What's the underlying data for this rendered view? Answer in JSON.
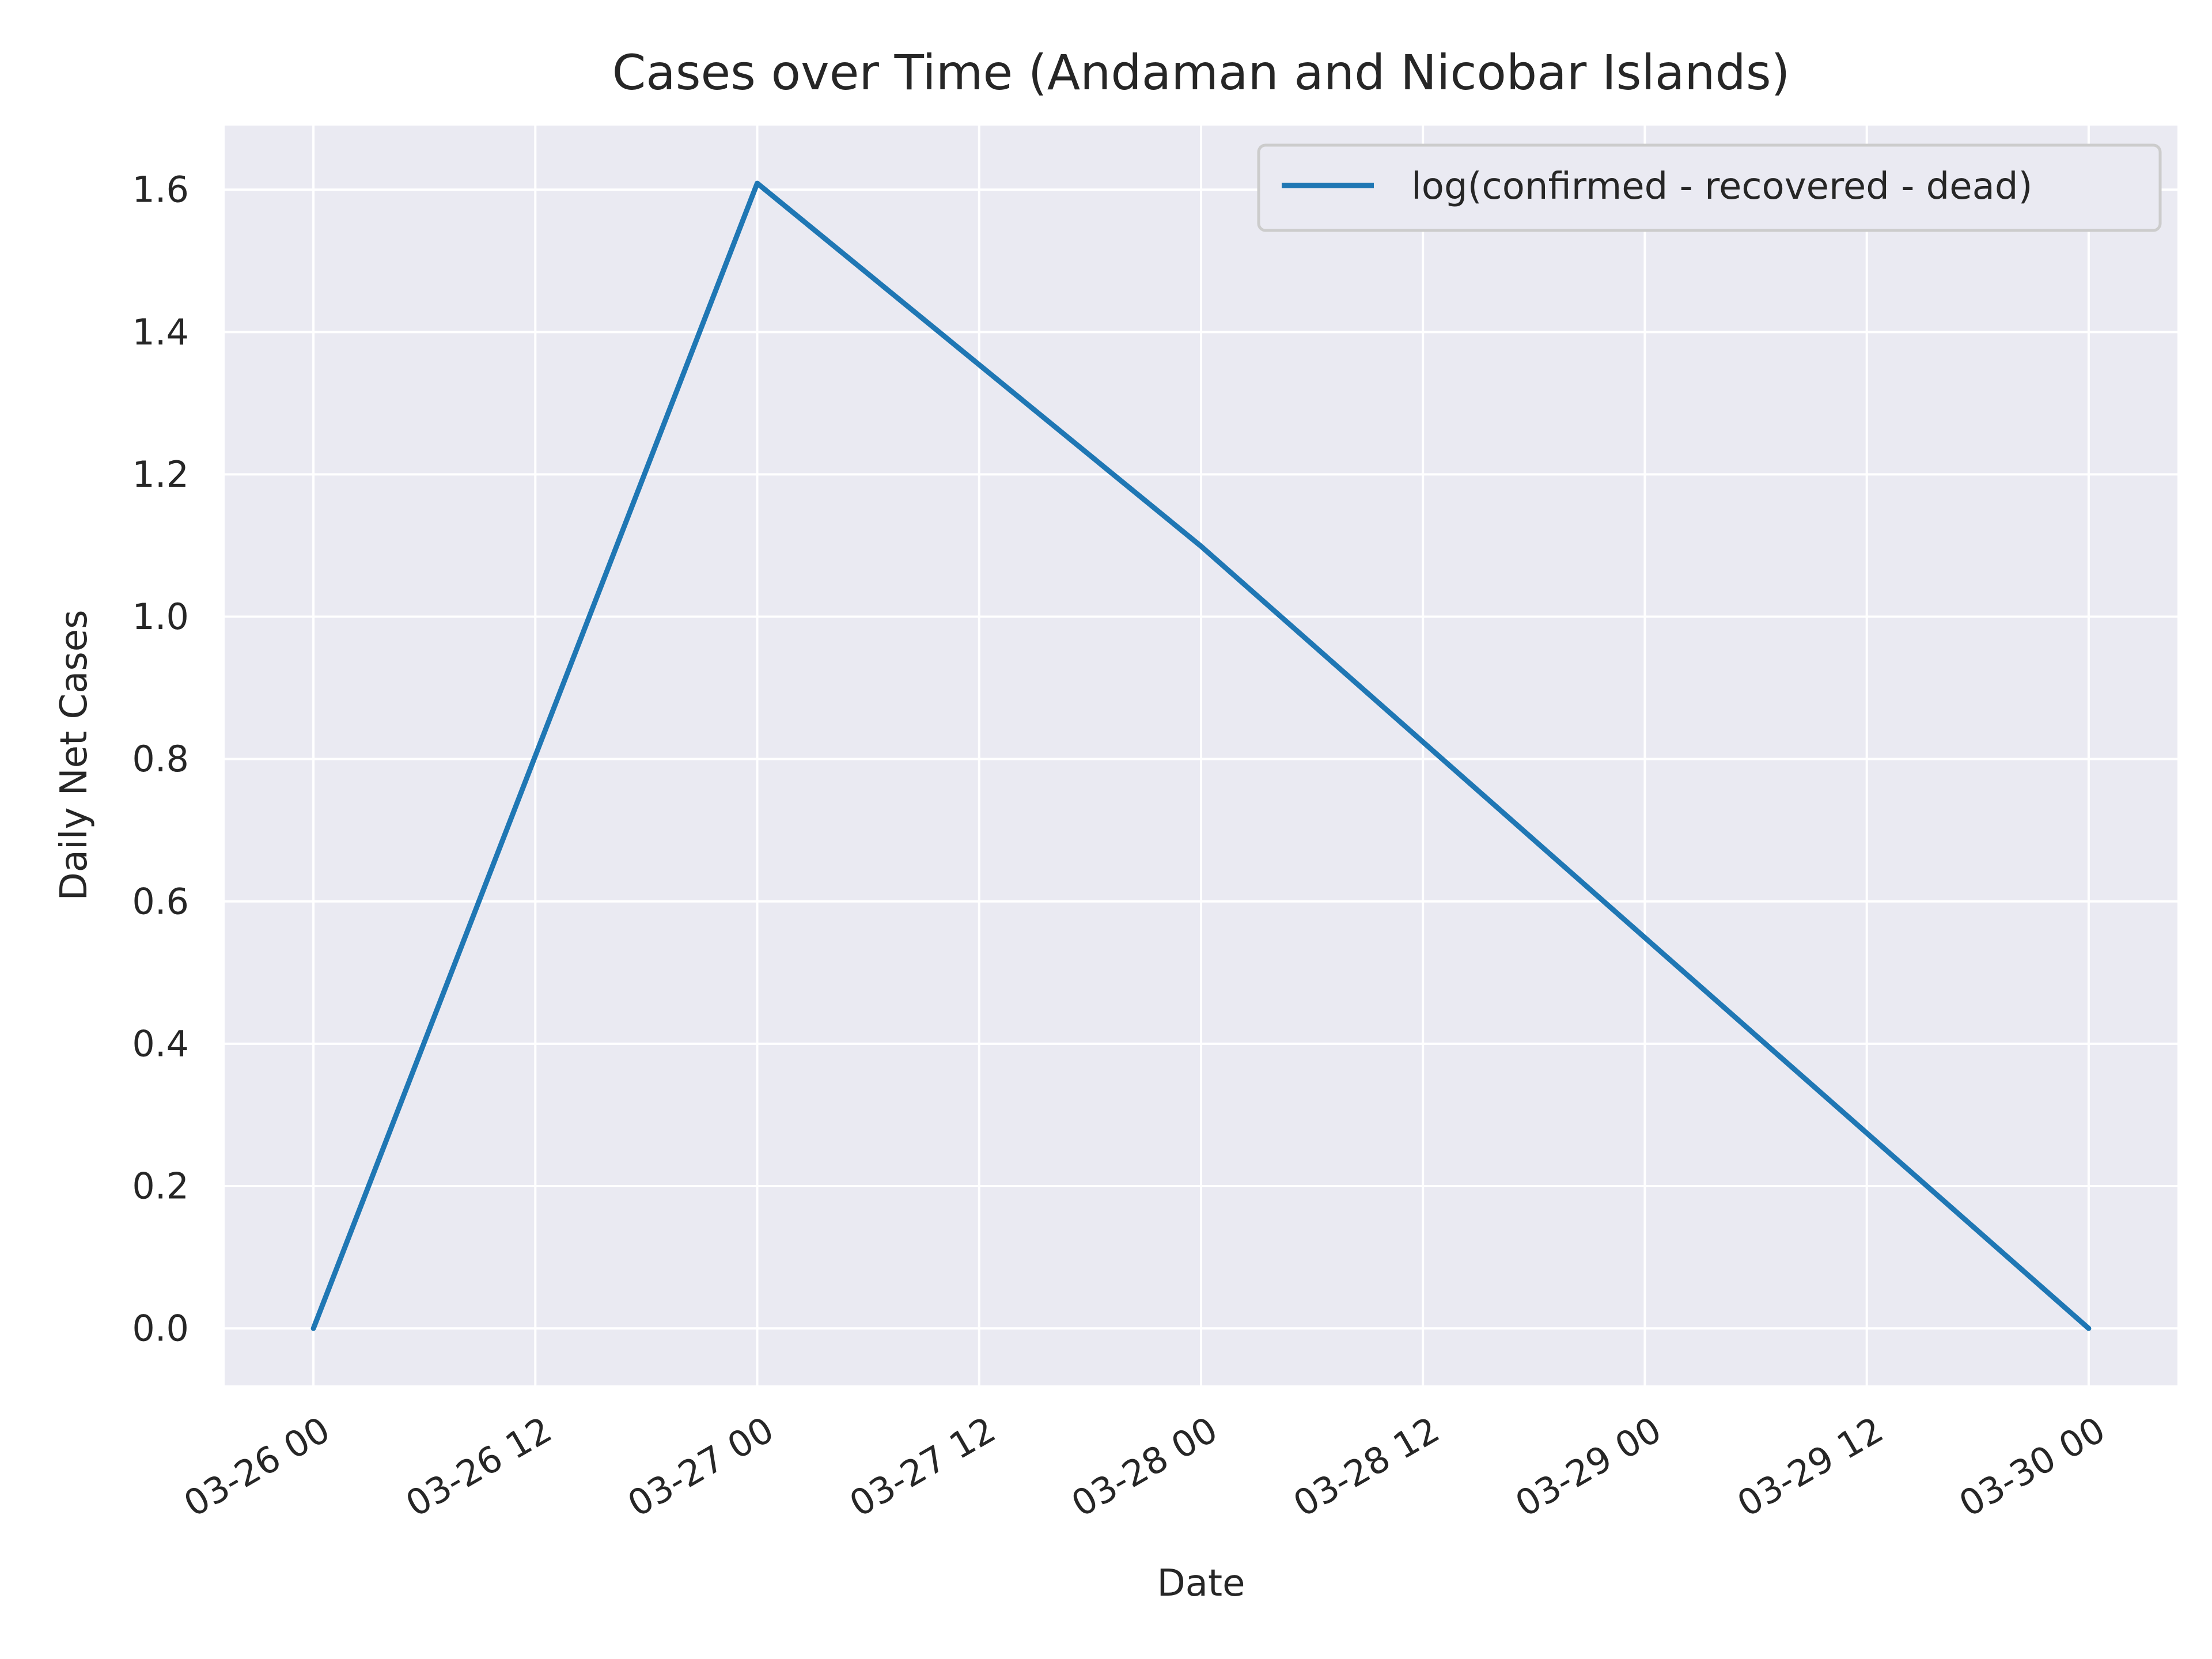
{
  "chart_data": {
    "type": "line",
    "title": "Cases over Time (Andaman and Nicobar Islands)",
    "xlabel": "Date",
    "ylabel": "Daily Net Cases",
    "x_ticks": [
      "03-26 00",
      "03-26 12",
      "03-27 00",
      "03-27 12",
      "03-28 00",
      "03-28 12",
      "03-29 00",
      "03-29 12",
      "03-30 00"
    ],
    "y_ticks": [
      "0.0",
      "0.2",
      "0.4",
      "0.6",
      "0.8",
      "1.0",
      "1.2",
      "1.4",
      "1.6"
    ],
    "xlim": [
      "2020-03-25 19:12",
      "2020-03-30 04:48"
    ],
    "ylim": [
      -0.08,
      1.69
    ],
    "grid": true,
    "legend_position": "top-right",
    "series": [
      {
        "name": "log(confirmed - recovered - dead)",
        "color": "#1f77b4",
        "x": [
          "2020-03-26 00:00",
          "2020-03-27 00:00",
          "2020-03-28 00:00",
          "2020-03-29 00:00",
          "2020-03-30 00:00"
        ],
        "y": [
          0.0,
          1.609,
          1.099,
          0.549,
          0.0
        ]
      }
    ]
  },
  "colors": {
    "plot_background": "#eaeaf2",
    "grid": "#ffffff",
    "text": "#262626"
  }
}
